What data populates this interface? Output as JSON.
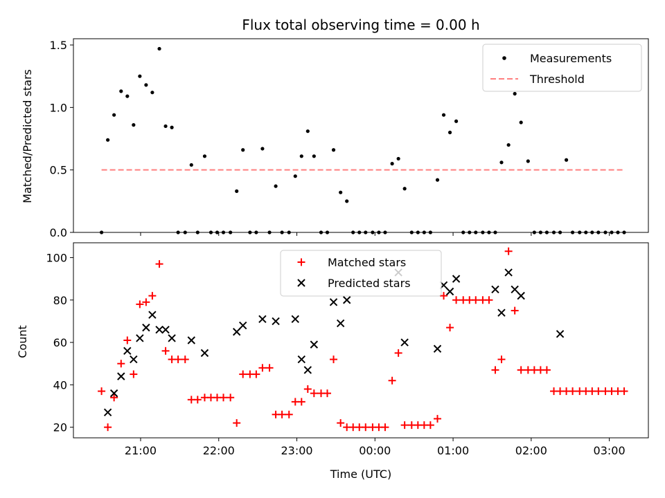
{
  "figure": {
    "title": "Flux total observing time = 0.00 h",
    "xlabel": "Time (UTC)"
  },
  "chart_data": [
    {
      "type": "scatter",
      "ylabel": "Matched/Predicted stars",
      "ylim": [
        0,
        1.55
      ],
      "yticks": [
        0.0,
        0.5,
        1.0,
        1.5
      ],
      "ytick_labels": [
        "0.0",
        "0.5",
        "1.0",
        "1.5"
      ],
      "threshold": {
        "value": 0.5,
        "x_start": 20.5,
        "x_end": 27.2
      },
      "legend": {
        "placement": "upper-right",
        "measurements_label": "Measurements",
        "threshold_label": "Threshold"
      },
      "colors": {
        "measurements": "#000000",
        "threshold": "#ff7f7f"
      },
      "measurements": {
        "x": [
          20.5,
          20.58,
          20.66,
          20.75,
          20.83,
          20.91,
          20.99,
          21.07,
          21.15,
          21.24,
          21.32,
          21.4,
          21.48,
          21.57,
          21.65,
          21.73,
          21.82,
          21.9,
          21.98,
          22.06,
          22.15,
          22.23,
          22.31,
          22.4,
          22.48,
          22.56,
          22.65,
          22.73,
          22.81,
          22.9,
          22.98,
          23.06,
          23.14,
          23.22,
          23.31,
          23.39,
          23.47,
          23.56,
          23.64,
          23.72,
          23.8,
          23.88,
          23.97,
          24.05,
          24.13,
          24.22,
          24.3,
          24.38,
          24.47,
          24.55,
          24.63,
          24.71,
          24.8,
          24.88,
          24.96,
          25.04,
          25.13,
          25.21,
          25.29,
          25.38,
          25.46,
          25.54,
          25.62,
          25.71,
          25.79,
          25.87,
          25.96,
          26.04,
          26.12,
          26.2,
          26.29,
          26.37,
          26.45,
          26.53,
          26.62,
          26.7,
          26.78,
          26.86,
          26.95,
          27.03,
          27.11,
          27.19
        ],
        "y": [
          0.0,
          0.74,
          0.94,
          1.13,
          1.09,
          0.86,
          1.25,
          1.18,
          1.12,
          1.47,
          0.85,
          0.84,
          0.0,
          0.0,
          0.54,
          0.0,
          0.61,
          0.0,
          0.0,
          0.0,
          0.0,
          0.33,
          0.66,
          0.0,
          0.0,
          0.67,
          0.0,
          0.37,
          0.0,
          0.0,
          0.45,
          0.61,
          0.81,
          0.61,
          0.0,
          0.0,
          0.66,
          0.32,
          0.25,
          0.0,
          0.0,
          0.0,
          0.0,
          0.0,
          0.0,
          0.55,
          0.59,
          0.35,
          0.0,
          0.0,
          0.0,
          0.0,
          0.42,
          0.94,
          0.8,
          0.89,
          0.0,
          0.0,
          0.0,
          0.0,
          0.0,
          0.0,
          0.56,
          0.7,
          1.11,
          0.88,
          0.57,
          0.0,
          0.0,
          0.0,
          0.0,
          0.0,
          0.58,
          0.0,
          0.0,
          0.0,
          0.0,
          0.0,
          0.0,
          0.0,
          0.0,
          0.0
        ]
      }
    },
    {
      "type": "scatter",
      "ylabel": "Count",
      "ylim": [
        15,
        107
      ],
      "yticks": [
        20,
        40,
        60,
        80,
        100
      ],
      "ytick_labels": [
        "20",
        "40",
        "60",
        "80",
        "100"
      ],
      "xticks": [
        21,
        22,
        23,
        24,
        25,
        26,
        27
      ],
      "xtick_labels": [
        "21:00",
        "22:00",
        "23:00",
        "00:00",
        "01:00",
        "02:00",
        "03:00"
      ],
      "xlim": [
        20.14,
        27.5
      ],
      "legend": {
        "placement": "upper-center",
        "matched_label": "Matched stars",
        "predicted_label": "Predicted stars"
      },
      "colors": {
        "matched": "#ff0000",
        "predicted": "#000000"
      },
      "matched": {
        "x": [
          20.5,
          20.58,
          20.66,
          20.75,
          20.83,
          20.91,
          20.99,
          21.07,
          21.15,
          21.24,
          21.32,
          21.4,
          21.48,
          21.57,
          21.65,
          21.73,
          21.82,
          21.9,
          21.98,
          22.06,
          22.15,
          22.23,
          22.31,
          22.4,
          22.48,
          22.56,
          22.65,
          22.73,
          22.81,
          22.9,
          22.98,
          23.06,
          23.14,
          23.22,
          23.31,
          23.39,
          23.47,
          23.56,
          23.64,
          23.72,
          23.8,
          23.88,
          23.97,
          24.05,
          24.13,
          24.22,
          24.3,
          24.38,
          24.47,
          24.55,
          24.63,
          24.71,
          24.8,
          24.88,
          24.96,
          25.04,
          25.13,
          25.21,
          25.29,
          25.38,
          25.46,
          25.54,
          25.62,
          25.71,
          25.79,
          25.87,
          25.96,
          26.04,
          26.12,
          26.2,
          26.29,
          26.37,
          26.45,
          26.53,
          26.62,
          26.7,
          26.78,
          26.86,
          26.95,
          27.03,
          27.11,
          27.19
        ],
        "y": [
          37,
          20,
          34,
          50,
          61,
          45,
          78,
          79,
          82,
          97,
          56,
          52,
          52,
          52,
          33,
          33,
          34,
          34,
          34,
          34,
          34,
          22,
          45,
          45,
          45,
          48,
          48,
          26,
          26,
          26,
          32,
          32,
          38,
          36,
          36,
          36,
          52,
          22,
          20,
          20,
          20,
          20,
          20,
          20,
          20,
          42,
          55,
          21,
          21,
          21,
          21,
          21,
          24,
          82,
          67,
          80,
          80,
          80,
          80,
          80,
          80,
          47,
          52,
          103,
          75,
          47,
          47,
          47,
          47,
          47,
          37,
          37,
          37,
          37,
          37,
          37,
          37,
          37,
          37,
          37,
          37,
          37
        ]
      },
      "predicted": {
        "x": [
          20.58,
          20.66,
          20.75,
          20.83,
          20.91,
          20.99,
          21.07,
          21.15,
          21.24,
          21.32,
          21.4,
          21.65,
          21.82,
          22.23,
          22.31,
          22.56,
          22.73,
          22.98,
          23.06,
          23.14,
          23.22,
          23.47,
          23.56,
          23.64,
          24.3,
          24.38,
          24.8,
          24.88,
          24.96,
          25.04,
          25.54,
          25.62,
          25.71,
          25.79,
          25.87,
          26.37
        ],
        "y": [
          27,
          36,
          44,
          56,
          52,
          62,
          67,
          73,
          66,
          66,
          62,
          61,
          55,
          65,
          68,
          71,
          70,
          71,
          52,
          47,
          59,
          79,
          69,
          80,
          93,
          60,
          57,
          87,
          84,
          90,
          85,
          74,
          93,
          85,
          82,
          64
        ]
      }
    }
  ]
}
